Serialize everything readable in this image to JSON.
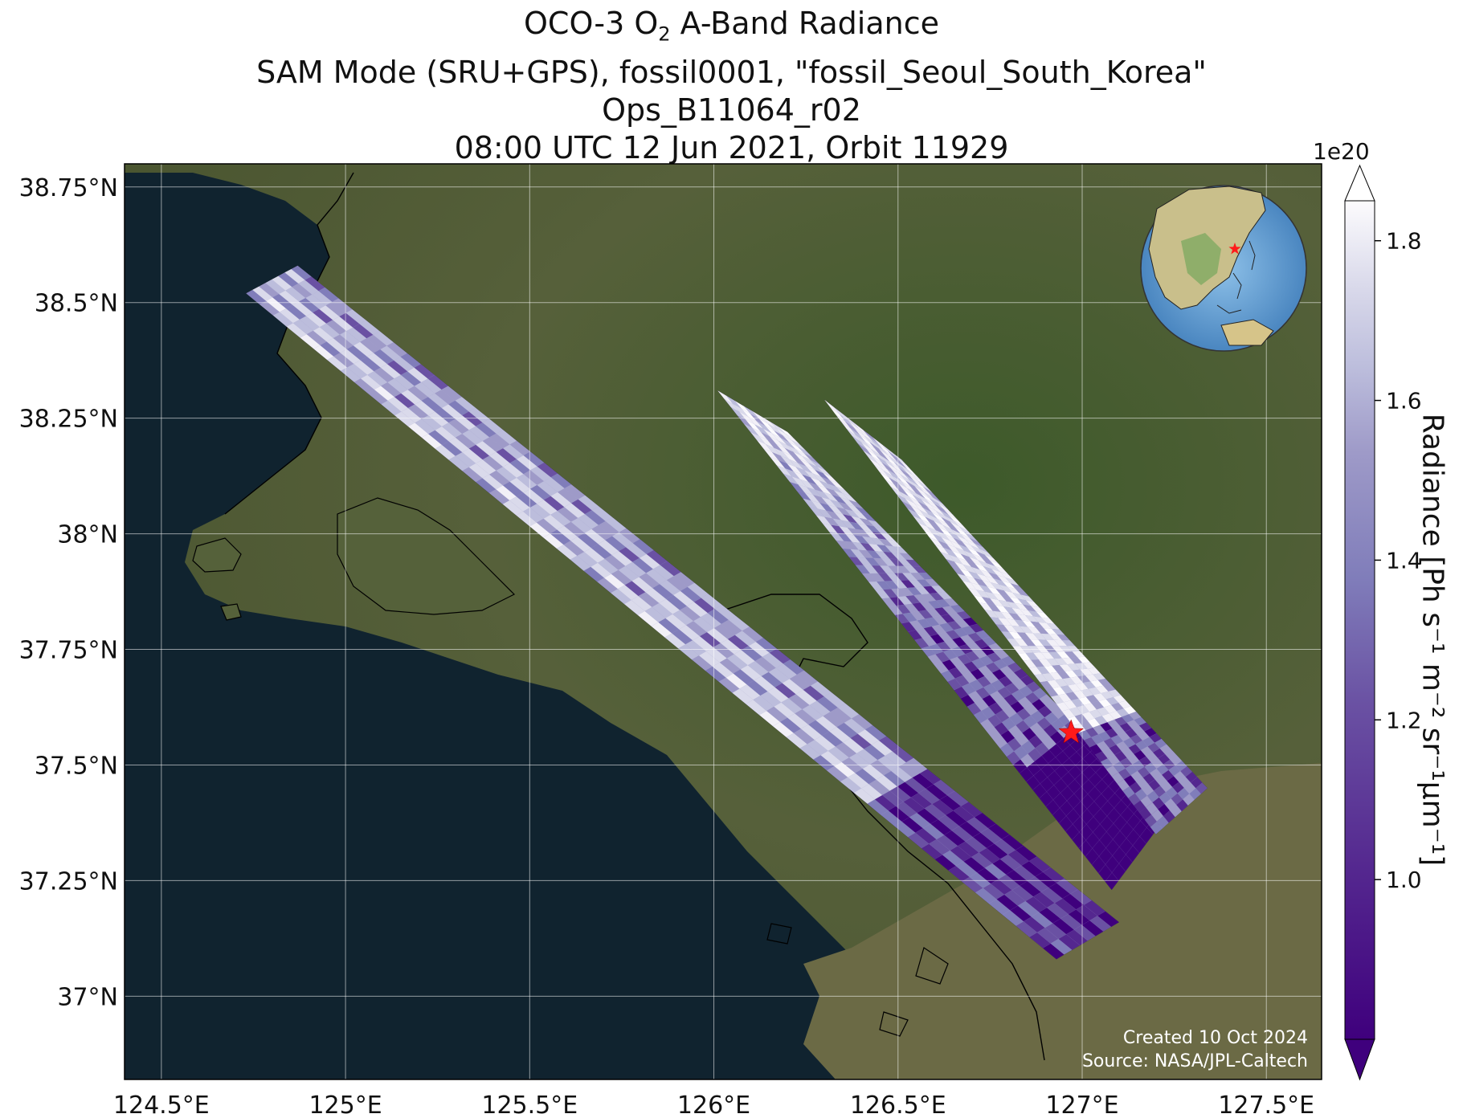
{
  "title": {
    "line1_prefix": "OCO-3 O",
    "line1_subscript": "2",
    "line1_suffix": " A-Band Radiance",
    "line2": "SAM Mode (SRU+GPS), fossil0001, \"fossil_Seoul_South_Korea\"",
    "line3": "Ops_B11064_r02",
    "line4": "08:00 UTC 12 Jun 2021, Orbit 11929"
  },
  "map": {
    "lon_range": [
      124.4,
      127.65
    ],
    "lat_range": [
      36.82,
      38.8
    ],
    "lon_ticks": [
      {
        "value": 124.5,
        "label": "124.5°E"
      },
      {
        "value": 125.0,
        "label": "125°E"
      },
      {
        "value": 125.5,
        "label": "125.5°E"
      },
      {
        "value": 126.0,
        "label": "126°E"
      },
      {
        "value": 126.5,
        "label": "126.5°E"
      },
      {
        "value": 127.0,
        "label": "127°E"
      },
      {
        "value": 127.5,
        "label": "127.5°E"
      }
    ],
    "lat_ticks": [
      {
        "value": 38.75,
        "label": "38.75°N"
      },
      {
        "value": 38.5,
        "label": "38.5°N"
      },
      {
        "value": 38.25,
        "label": "38.25°N"
      },
      {
        "value": 38.0,
        "label": "38°N"
      },
      {
        "value": 37.75,
        "label": "37.75°N"
      },
      {
        "value": 37.5,
        "label": "37.5°N"
      },
      {
        "value": 37.25,
        "label": "37.25°N"
      },
      {
        "value": 37.0,
        "label": "37°N"
      }
    ],
    "grid": true,
    "target_marker": {
      "lon": 126.97,
      "lat": 37.57,
      "symbol": "star",
      "color": "#ff1a1a"
    },
    "swaths": [
      {
        "corners": [
          [
            124.73,
            38.52
          ],
          [
            124.87,
            38.58
          ],
          [
            127.1,
            37.16
          ],
          [
            126.93,
            37.08
          ]
        ]
      },
      {
        "corners": [
          [
            126.01,
            38.31
          ],
          [
            126.2,
            38.22
          ],
          [
            127.23,
            37.39
          ],
          [
            127.08,
            37.23
          ]
        ]
      },
      {
        "corners": [
          [
            126.3,
            38.29
          ],
          [
            126.51,
            38.16
          ],
          [
            127.34,
            37.45
          ],
          [
            127.2,
            37.35
          ]
        ]
      }
    ],
    "colors": {
      "sea": "#10232f",
      "land": "#4d5930",
      "forest": "#2e4a22",
      "grid": "#ffffff",
      "coast": "#000000"
    },
    "credit_line1": "Created 10 Oct 2024",
    "credit_line2": "Source: NASA/JPL-Caltech"
  },
  "colorbar": {
    "exponent_label": "1e20",
    "label": "Radiance [Ph s⁻¹ m⁻² sr⁻¹μm⁻¹]",
    "range": [
      0.8,
      1.85
    ],
    "extend": "both",
    "ticks": [
      {
        "value": 1.0,
        "label": "1.0"
      },
      {
        "value": 1.2,
        "label": "1.2"
      },
      {
        "value": 1.4,
        "label": "1.4"
      },
      {
        "value": 1.6,
        "label": "1.6"
      },
      {
        "value": 1.8,
        "label": "1.8"
      }
    ],
    "colors": {
      "low": "#3f007d",
      "mid": "#9e9ac8",
      "high": "#fcfbfd",
      "extend_low": "#3f007d",
      "extend_high": "#ffffff"
    }
  },
  "inset_globe": {
    "ocean": "#5b9bd5",
    "land": "#c8c08a",
    "marker_color": "#ff1a1a"
  }
}
